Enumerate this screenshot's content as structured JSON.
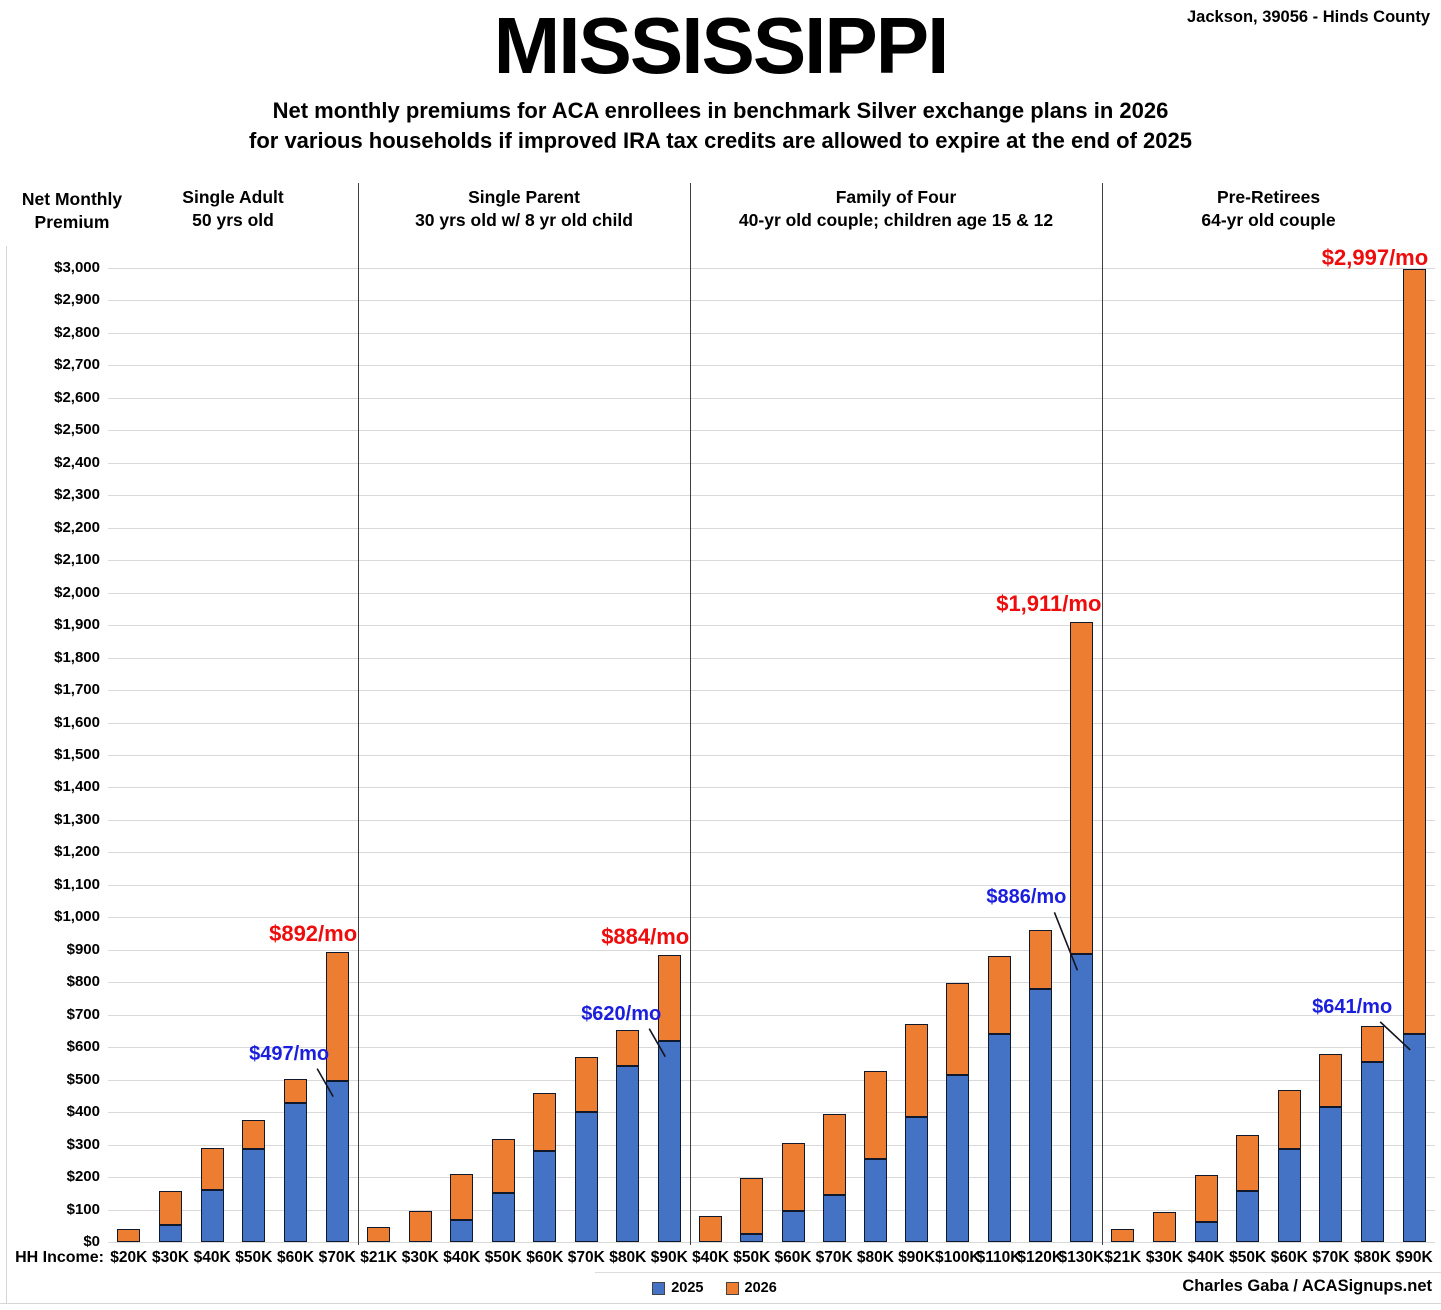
{
  "header": {
    "title": "MISSISSIPPI",
    "location": "Jackson, 39056 - Hinds County",
    "subtitle_line1": "Net monthly premiums for ACA enrollees in benchmark Silver exchange plans in 2026",
    "subtitle_line2": "for various households if improved IRA tax credits are allowed to expire at the end of 2025"
  },
  "credit": "Charles Gaba / ACASignups.net",
  "colors": {
    "bar_2025": "#4472c4",
    "bar_2026": "#ed7d31",
    "bar_border": "#10182b",
    "annotation_red": "#ee0c0c",
    "annotation_blue": "#1b1fdd",
    "gridline": "#d9d9d9",
    "divider": "#3f3f3f"
  },
  "chart_data": {
    "type": "bar",
    "stacked": true,
    "title": "MISSISSIPPI",
    "y_axis": {
      "label": "Net Monthly Premium",
      "min": 0,
      "max": 3000,
      "step": 100,
      "tick_prefix": "$"
    },
    "x_axis_label": "HH Income:",
    "legend": [
      "2025",
      "2026"
    ],
    "series_note": "values_2026 are stacked-bar totals (2026 premium); orange segment = 2026 total minus 2025 value",
    "panels": [
      {
        "title_line1": "Single Adult",
        "title_line2": "50 yrs old",
        "categories": [
          "$20K",
          "$30K",
          "$40K",
          "$50K",
          "$60K",
          "$70K"
        ],
        "values_2025": [
          0,
          52,
          160,
          287,
          428,
          497
        ],
        "values_2026": [
          40,
          158,
          288,
          377,
          503,
          892
        ],
        "annotations": [
          {
            "cat": "$70K",
            "series": "2025",
            "text": "$497/mo",
            "style": "blue"
          },
          {
            "cat": "$70K",
            "series": "2026",
            "text": "$892/mo",
            "style": "red"
          }
        ]
      },
      {
        "title_line1": "Single Parent",
        "title_line2": "30 yrs old w/ 8 yr old child",
        "categories": [
          "$21K",
          "$30K",
          "$40K",
          "$50K",
          "$60K",
          "$70K",
          "$80K",
          "$90K"
        ],
        "values_2025": [
          0,
          0,
          67,
          150,
          280,
          400,
          542,
          620
        ],
        "values_2026": [
          45,
          97,
          210,
          318,
          460,
          570,
          653,
          884
        ],
        "annotations": [
          {
            "cat": "$90K",
            "series": "2025",
            "text": "$620/mo",
            "style": "blue"
          },
          {
            "cat": "$90K",
            "series": "2026",
            "text": "$884/mo",
            "style": "red"
          }
        ]
      },
      {
        "title_line1": "Family of Four",
        "title_line2": "40-yr old couple; children age 15 & 12",
        "categories": [
          "$40K",
          "$50K",
          "$60K",
          "$70K",
          "$80K",
          "$90K",
          "$100K",
          "$110K",
          "$120K",
          "$130K"
        ],
        "values_2025": [
          0,
          25,
          95,
          146,
          256,
          385,
          515,
          642,
          778,
          886
        ],
        "values_2026": [
          80,
          196,
          305,
          395,
          528,
          670,
          797,
          880,
          960,
          1911
        ],
        "annotations": [
          {
            "cat": "$130K",
            "series": "2025",
            "text": "$886/mo",
            "style": "blue"
          },
          {
            "cat": "$130K",
            "series": "2026",
            "text": "$1,911/mo",
            "style": "red"
          }
        ]
      },
      {
        "title_line1": "Pre-Retirees",
        "title_line2": "64-yr old couple",
        "categories": [
          "$21K",
          "$30K",
          "$40K",
          "$50K",
          "$60K",
          "$70K",
          "$80K",
          "$90K"
        ],
        "values_2025": [
          0,
          0,
          62,
          158,
          285,
          415,
          553,
          641
        ],
        "values_2026": [
          40,
          92,
          205,
          330,
          468,
          580,
          665,
          2997
        ],
        "annotations": [
          {
            "cat": "$90K",
            "series": "2025",
            "text": "$641/mo",
            "style": "blue"
          },
          {
            "cat": "$90K",
            "series": "2026",
            "text": "$2,997/mo",
            "style": "red"
          }
        ]
      }
    ]
  }
}
